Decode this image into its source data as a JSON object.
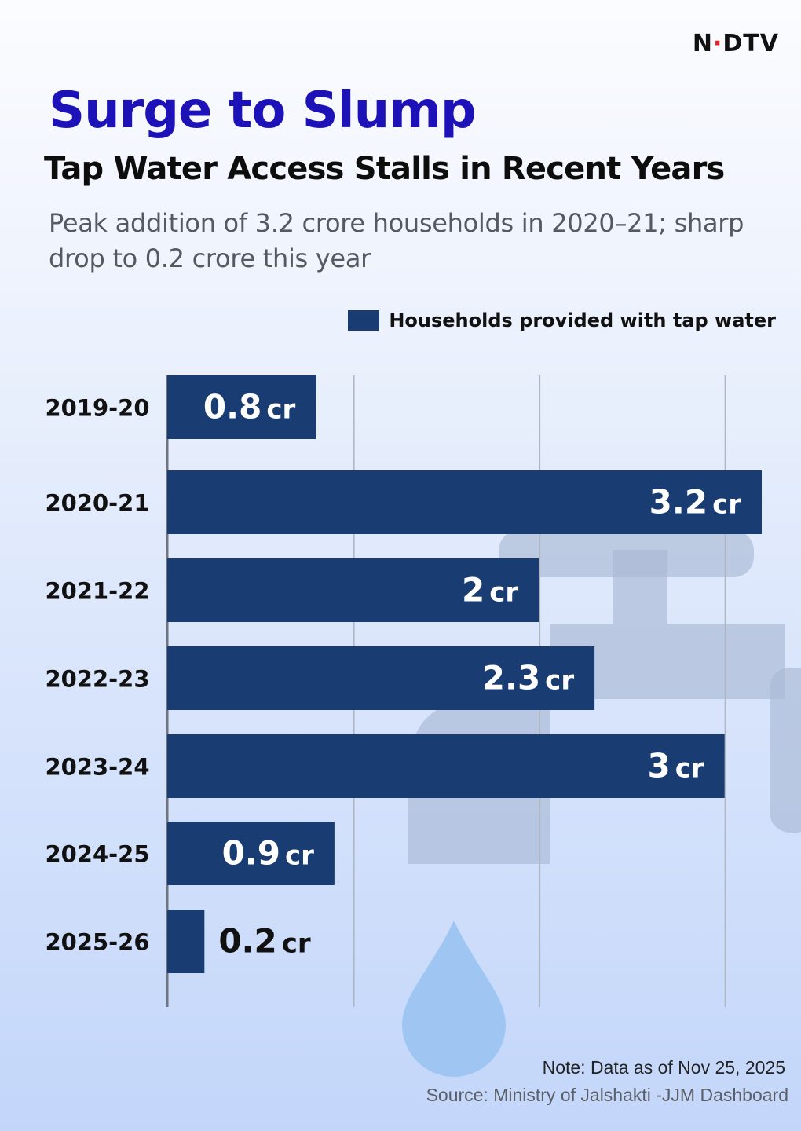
{
  "brand": {
    "logo_text": "NDTV"
  },
  "header": {
    "title": "Surge to Slump",
    "subtitle": "Tap Water Access Stalls in Recent Years",
    "description": "Peak addition of 3.2 crore households in 2020–21; sharp drop to 0.2 crore this year"
  },
  "colors": {
    "title": "#1d12b8",
    "bar": "#193d72",
    "accent_dot": "#e3202b"
  },
  "chart_data": {
    "type": "bar",
    "orientation": "horizontal",
    "categories": [
      "2019-20",
      "2020-21",
      "2021-22",
      "2022-23",
      "2023-24",
      "2024-25",
      "2025-26"
    ],
    "series": [
      {
        "name": "Households provided with tap water",
        "values": [
          0.8,
          3.2,
          2,
          2.3,
          3,
          0.9,
          0.2
        ]
      }
    ],
    "data_labels": [
      {
        "value": "0.8",
        "unit": "cr"
      },
      {
        "value": "3.2",
        "unit": "cr"
      },
      {
        "value": "2",
        "unit": "cr"
      },
      {
        "value": "2.3",
        "unit": "cr"
      },
      {
        "value": "3",
        "unit": "cr"
      },
      {
        "value": "0.9",
        "unit": "cr"
      },
      {
        "value": "0.2",
        "unit": "cr"
      }
    ],
    "unit": "crore households",
    "xlim": [
      0,
      3.2
    ],
    "gridlines": [
      1,
      2,
      3
    ],
    "grid": true,
    "legend_position": "top-right"
  },
  "footer": {
    "note": "Note: Data as of Nov 25, 2025",
    "source": "Source: Ministry of Jalshakti -JJM Dashboard"
  }
}
